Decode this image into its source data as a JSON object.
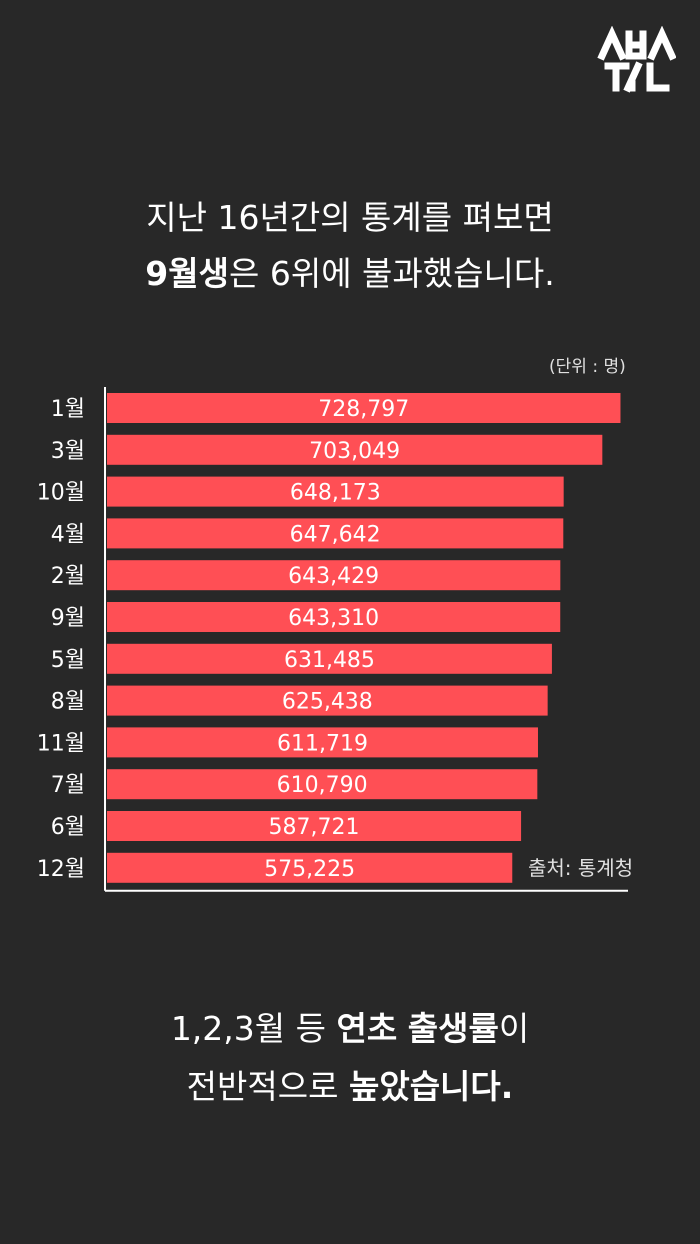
{
  "brand": {
    "logo_top": "스브스",
    "logo_bottom": "뉴스"
  },
  "headline": {
    "line1": "지난 16년간의 통계를 펴보면",
    "line2_bold": "9월생",
    "line2_rest": "은 6위에 불과했습니다."
  },
  "unit_label": "(단위 : 명)",
  "source_label": "출처:  통계청",
  "footer": {
    "line1_a": "1,2,3월 등 ",
    "line1_bold1": "연초",
    "line1_space": " ",
    "line1_bold2": "출생률",
    "line1_b": "이",
    "line2_a": "전반적으로 ",
    "line2_bold": "높았습니다."
  },
  "colors": {
    "background": "#282828",
    "bar": "#ff4f55",
    "text": "#ffffff"
  },
  "chart_data": {
    "type": "bar",
    "orientation": "horizontal",
    "categories": [
      "1월",
      "3월",
      "10월",
      "4월",
      "2월",
      "9월",
      "5월",
      "8월",
      "11월",
      "7월",
      "6월",
      "12월"
    ],
    "values": [
      728797,
      703049,
      648173,
      647642,
      643429,
      643310,
      631485,
      625438,
      611719,
      610790,
      587721,
      575225
    ],
    "value_labels": [
      "728,797",
      "703,049",
      "648,173",
      "647,642",
      "643,429",
      "643,310",
      "631,485",
      "625,438",
      "611,719",
      "610,790",
      "587,721",
      "575,225"
    ],
    "xlim": [
      0,
      880000
    ]
  }
}
